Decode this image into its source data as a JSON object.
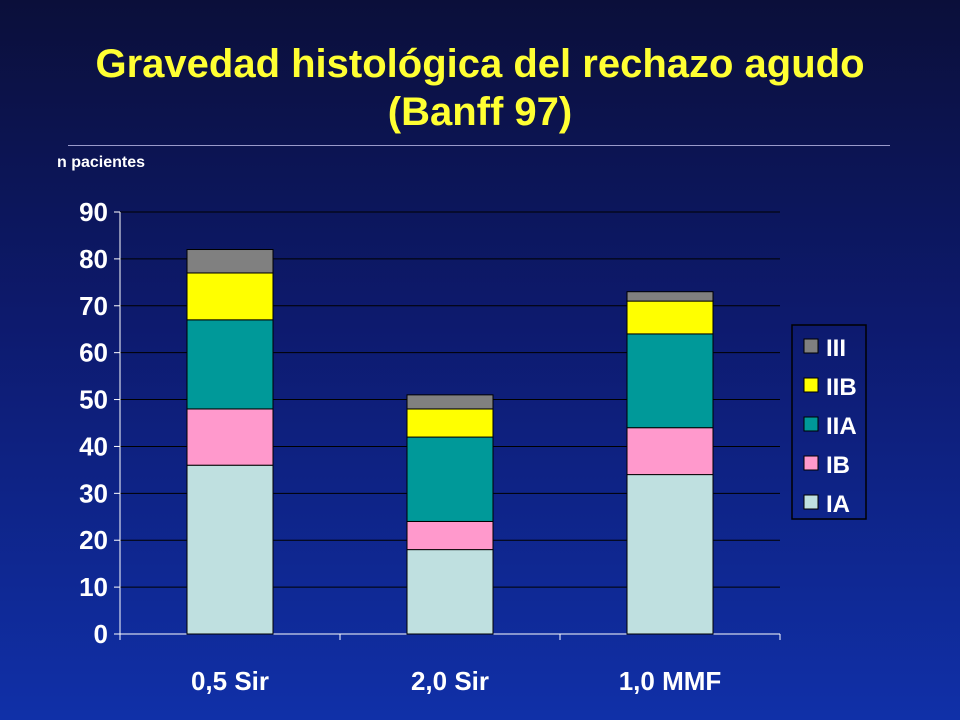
{
  "slide": {
    "title_line1": "Gravedad histológica del rechazo agudo",
    "title_line2": "(Banff 97)"
  },
  "colors": {
    "title": "#ffff33",
    "IA": "#bfe0e0",
    "IB": "#ff99cc",
    "IIA": "#009999",
    "IIB": "#ffff00",
    "III": "#808080"
  },
  "chart_data": {
    "type": "bar",
    "stacked": true,
    "ylabel": "n pacientes",
    "ylim": [
      0,
      90
    ],
    "yticks": [
      0,
      10,
      20,
      30,
      40,
      50,
      60,
      70,
      80,
      90
    ],
    "categories": [
      "0,5 Sir",
      "2,0 Sir",
      "1,0 MMF"
    ],
    "series": [
      {
        "name": "IA",
        "values": [
          36,
          18,
          34
        ]
      },
      {
        "name": "IB",
        "values": [
          12,
          6,
          10
        ]
      },
      {
        "name": "IIA",
        "values": [
          19,
          18,
          20
        ]
      },
      {
        "name": "IIB",
        "values": [
          10,
          6,
          7
        ]
      },
      {
        "name": "III",
        "values": [
          5,
          3,
          2
        ]
      }
    ],
    "legend_order": [
      "III",
      "IIB",
      "IIA",
      "IB",
      "IA"
    ],
    "legend_position": "right",
    "grid": true
  }
}
